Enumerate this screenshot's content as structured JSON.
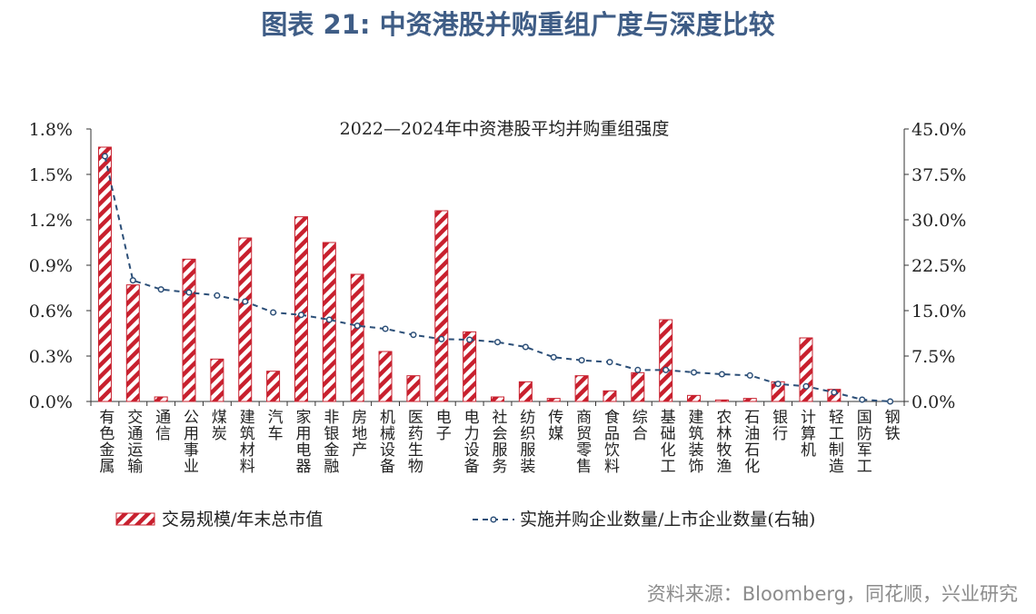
{
  "figure_title": "图表 21: 中资港股并购重组广度与深度比较",
  "source": "资料来源：Bloomberg，同花顺，兴业研究",
  "colors": {
    "bar_stroke": "#c8202e",
    "line": "#2c4f78",
    "title": "#3f5d86"
  },
  "chart_data": {
    "type": "bar",
    "title": "2022—2024年中资港股平均并购重组强度",
    "categories": [
      "有色金属",
      "交通运输",
      "通信",
      "公用事业",
      "煤炭",
      "建筑材料",
      "汽车",
      "家用电器",
      "非银金融",
      "房地产",
      "机械设备",
      "医药生物",
      "电子",
      "电力设备",
      "社会服务",
      "纺织服装",
      "传媒",
      "商贸零售",
      "食品饮料",
      "综合",
      "基础化工",
      "建筑装饰",
      "农林牧渔",
      "石油石化",
      "银行",
      "计算机",
      "轻工制造",
      "国防军工",
      "钢铁"
    ],
    "series": [
      {
        "name": "交易规模/年末总市值",
        "axis": "left",
        "values": [
          1.68,
          0.77,
          0.03,
          0.94,
          0.28,
          1.08,
          0.2,
          1.22,
          1.05,
          0.84,
          0.33,
          0.17,
          1.26,
          0.46,
          0.03,
          0.13,
          0.02,
          0.17,
          0.07,
          0.19,
          0.54,
          0.04,
          0.01,
          0.02,
          0.13,
          0.42,
          0.08,
          0.0,
          0.0
        ]
      },
      {
        "name": "实施并购企业数量/上市企业数量(右轴)",
        "axis": "right",
        "values": [
          40.5,
          20.0,
          18.5,
          18.0,
          17.5,
          16.5,
          14.7,
          14.3,
          13.5,
          12.5,
          12.0,
          11.0,
          10.3,
          10.2,
          9.8,
          9.0,
          7.3,
          6.8,
          6.5,
          5.2,
          5.2,
          4.8,
          4.5,
          4.3,
          2.9,
          2.5,
          1.5,
          0.3,
          0.0
        ]
      }
    ],
    "ylim_left": [
      0,
      1.8
    ],
    "yticks_left": [
      "0.0%",
      "0.3%",
      "0.6%",
      "0.9%",
      "1.2%",
      "1.5%",
      "1.8%"
    ],
    "ylim_right": [
      0,
      45
    ],
    "yticks_right": [
      "0.0%",
      "7.5%",
      "15.0%",
      "22.5%",
      "30.0%",
      "37.5%",
      "45.0%"
    ],
    "legend_position": "bottom"
  }
}
